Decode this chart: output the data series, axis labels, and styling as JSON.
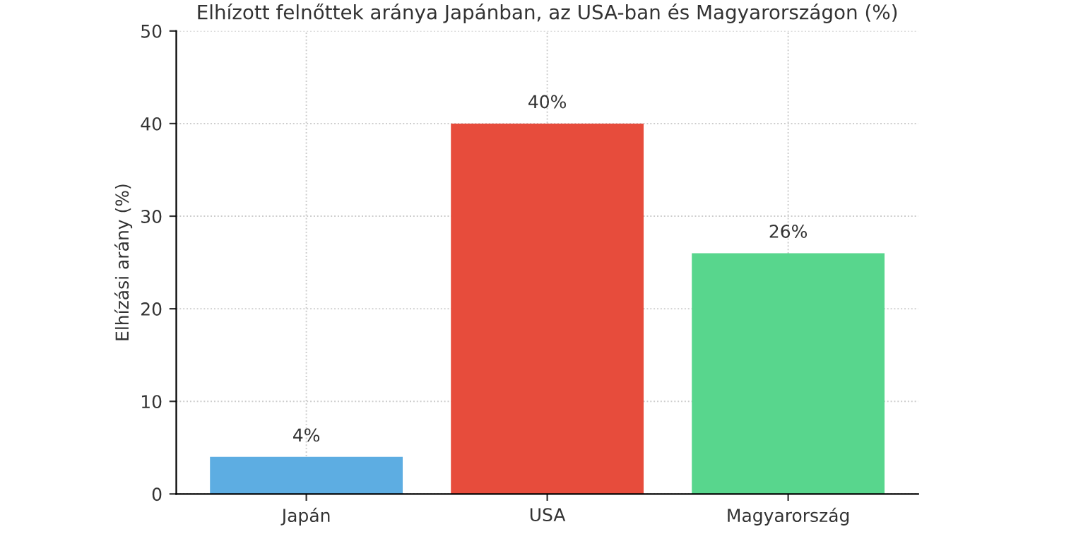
{
  "chart_data": {
    "type": "bar",
    "title": "Elhízott felnőttek aránya Japánban, az USA-ban és Magyarországon (%)",
    "ylabel": "Elhízási arány (%)",
    "categories": [
      "Japán",
      "USA",
      "Magyarország"
    ],
    "values": [
      4,
      40,
      26
    ],
    "colors": [
      "#5dade2",
      "#e74c3c",
      "#58d68d"
    ],
    "value_labels": [
      "4%",
      "40%",
      "26%"
    ],
    "ylim": [
      0,
      50
    ],
    "yticks": [
      0,
      10,
      20,
      30,
      40,
      50
    ],
    "grid": true
  }
}
